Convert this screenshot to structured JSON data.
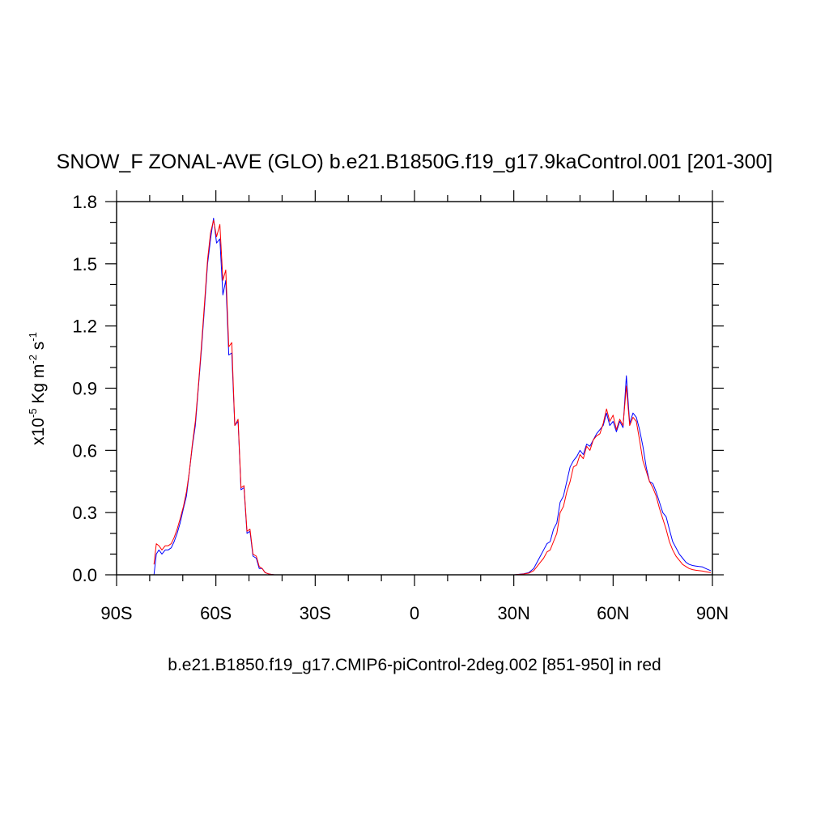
{
  "chart_data": {
    "type": "line",
    "title": "SNOW_F ZONAL-AVE (GLO) b.e21.B1850G.f19_g17.9kaControl.001 [201-300]",
    "subtitle": "b.e21.B1850.f19_g17.CMIP6-piControl-2deg.002 [851-950] in red",
    "ylabel": {
      "prefix": "x10",
      "exp1": "-5",
      "units": " Kg m",
      "exp2": "-2",
      "mid": " s",
      "exp3": "-1"
    },
    "xlim": [
      -90,
      90
    ],
    "ylim": [
      0,
      1.8
    ],
    "xticks": [
      -90,
      -60,
      -30,
      0,
      30,
      60,
      90
    ],
    "xtick_labels": [
      "90S",
      "60S",
      "30S",
      "0",
      "30N",
      "60N",
      "90N"
    ],
    "yticks": [
      0,
      0.3,
      0.6,
      0.9,
      1.2,
      1.5,
      1.8
    ],
    "ytick_labels": [
      "0.0",
      "0.3",
      "0.6",
      "0.9",
      "1.2",
      "1.5",
      "1.8"
    ],
    "grid": false,
    "series": [
      {
        "color": "#0000ff",
        "x": [
          -78.7,
          -78.0,
          -77.2,
          -76.3,
          -75.3,
          -74.4,
          -73.5,
          -72.6,
          -71.7,
          -70.8,
          -69.8,
          -68.9,
          -68.0,
          -67.1,
          -66.2,
          -65.3,
          -64.3,
          -63.4,
          -62.5,
          -61.6,
          -60.7,
          -59.8,
          -58.8,
          -57.9,
          -57.0,
          -56.1,
          -55.2,
          -54.3,
          -53.3,
          -52.4,
          -51.5,
          -50.6,
          -49.7,
          -48.8,
          -47.8,
          -46.9,
          -46.0,
          -45.1,
          -44.2,
          -43.3,
          -42.3,
          -40,
          -35,
          -30,
          -20,
          -10,
          0,
          10,
          20,
          30,
          33.0,
          34.5,
          36.0,
          37.0,
          38.0,
          39.0,
          40.0,
          41.0,
          42.0,
          43.0,
          44.0,
          45.0,
          46.0,
          47.0,
          48.0,
          49.0,
          50.0,
          51.0,
          52.0,
          53.0,
          54.0,
          55.0,
          56.0,
          57.0,
          58.0,
          59.0,
          60.0,
          61.0,
          62.0,
          63.0,
          64.0,
          65.0,
          66.0,
          67.0,
          68.0,
          69.0,
          70.0,
          71.0,
          72.0,
          73.0,
          74.0,
          75.0,
          76.0,
          77.0,
          78.0,
          79.0,
          80.0,
          81.0,
          82.0,
          83.0,
          84.0,
          85.0,
          86.0,
          87.0,
          88.0,
          89.5
        ],
        "y": [
          0.0,
          0.1,
          0.12,
          0.1,
          0.12,
          0.12,
          0.13,
          0.16,
          0.2,
          0.25,
          0.32,
          0.38,
          0.5,
          0.62,
          0.72,
          0.9,
          1.1,
          1.3,
          1.5,
          1.62,
          1.72,
          1.6,
          1.62,
          1.35,
          1.42,
          1.06,
          1.07,
          0.72,
          0.74,
          0.41,
          0.42,
          0.2,
          0.21,
          0.09,
          0.08,
          0.03,
          0.03,
          0.01,
          0.005,
          0.002,
          0.0,
          0.0,
          0.0,
          0.0,
          0.0,
          0.0,
          0.0,
          0.0,
          0.0,
          0.0,
          0.005,
          0.01,
          0.03,
          0.06,
          0.09,
          0.12,
          0.15,
          0.16,
          0.22,
          0.25,
          0.35,
          0.38,
          0.45,
          0.52,
          0.55,
          0.57,
          0.6,
          0.58,
          0.63,
          0.62,
          0.65,
          0.68,
          0.7,
          0.72,
          0.78,
          0.72,
          0.74,
          0.69,
          0.74,
          0.71,
          0.96,
          0.73,
          0.78,
          0.76,
          0.7,
          0.62,
          0.52,
          0.45,
          0.44,
          0.4,
          0.35,
          0.3,
          0.28,
          0.22,
          0.16,
          0.13,
          0.1,
          0.08,
          0.06,
          0.05,
          0.045,
          0.042,
          0.04,
          0.038,
          0.03,
          0.02
        ]
      },
      {
        "color": "#ff0000",
        "x": [
          -78.7,
          -78.0,
          -77.2,
          -76.3,
          -75.3,
          -74.4,
          -73.5,
          -72.6,
          -71.7,
          -70.8,
          -69.8,
          -68.9,
          -68.0,
          -67.1,
          -66.2,
          -65.3,
          -64.3,
          -63.4,
          -62.5,
          -61.6,
          -60.7,
          -59.8,
          -58.8,
          -57.9,
          -57.0,
          -56.1,
          -55.2,
          -54.3,
          -53.3,
          -52.4,
          -51.5,
          -50.6,
          -49.7,
          -48.8,
          -47.8,
          -46.9,
          -46.0,
          -45.1,
          -44.2,
          -43.3,
          -42.3,
          -40,
          -35,
          -30,
          -20,
          -10,
          0,
          10,
          20,
          30,
          33.0,
          34.5,
          36.0,
          37.0,
          38.0,
          39.0,
          40.0,
          41.0,
          42.0,
          43.0,
          44.0,
          45.0,
          46.0,
          47.0,
          48.0,
          49.0,
          50.0,
          51.0,
          52.0,
          53.0,
          54.0,
          55.0,
          56.0,
          57.0,
          58.0,
          59.0,
          60.0,
          61.0,
          62.0,
          63.0,
          64.0,
          65.0,
          66.0,
          67.0,
          68.0,
          69.0,
          70.0,
          71.0,
          72.0,
          73.0,
          74.0,
          75.0,
          76.0,
          77.0,
          78.0,
          79.0,
          80.0,
          81.0,
          82.0,
          83.0,
          84.0,
          85.0,
          86.0,
          87.0,
          88.0,
          89.5
        ],
        "y": [
          0.05,
          0.15,
          0.14,
          0.12,
          0.14,
          0.14,
          0.15,
          0.18,
          0.22,
          0.27,
          0.33,
          0.4,
          0.5,
          0.63,
          0.74,
          0.91,
          1.12,
          1.32,
          1.52,
          1.65,
          1.71,
          1.63,
          1.69,
          1.42,
          1.47,
          1.1,
          1.12,
          0.72,
          0.75,
          0.42,
          0.43,
          0.21,
          0.22,
          0.1,
          0.09,
          0.04,
          0.03,
          0.01,
          0.005,
          0.002,
          0.0,
          0.0,
          0.0,
          0.0,
          0.0,
          0.0,
          0.0,
          0.0,
          0.0,
          0.0,
          0.004,
          0.008,
          0.02,
          0.04,
          0.06,
          0.08,
          0.11,
          0.12,
          0.16,
          0.2,
          0.3,
          0.33,
          0.4,
          0.45,
          0.52,
          0.53,
          0.58,
          0.56,
          0.62,
          0.6,
          0.65,
          0.67,
          0.68,
          0.73,
          0.8,
          0.74,
          0.77,
          0.7,
          0.75,
          0.72,
          0.91,
          0.72,
          0.76,
          0.74,
          0.65,
          0.55,
          0.5,
          0.45,
          0.42,
          0.38,
          0.32,
          0.27,
          0.22,
          0.16,
          0.12,
          0.09,
          0.07,
          0.05,
          0.04,
          0.03,
          0.025,
          0.022,
          0.02,
          0.018,
          0.015,
          0.01
        ]
      }
    ]
  }
}
